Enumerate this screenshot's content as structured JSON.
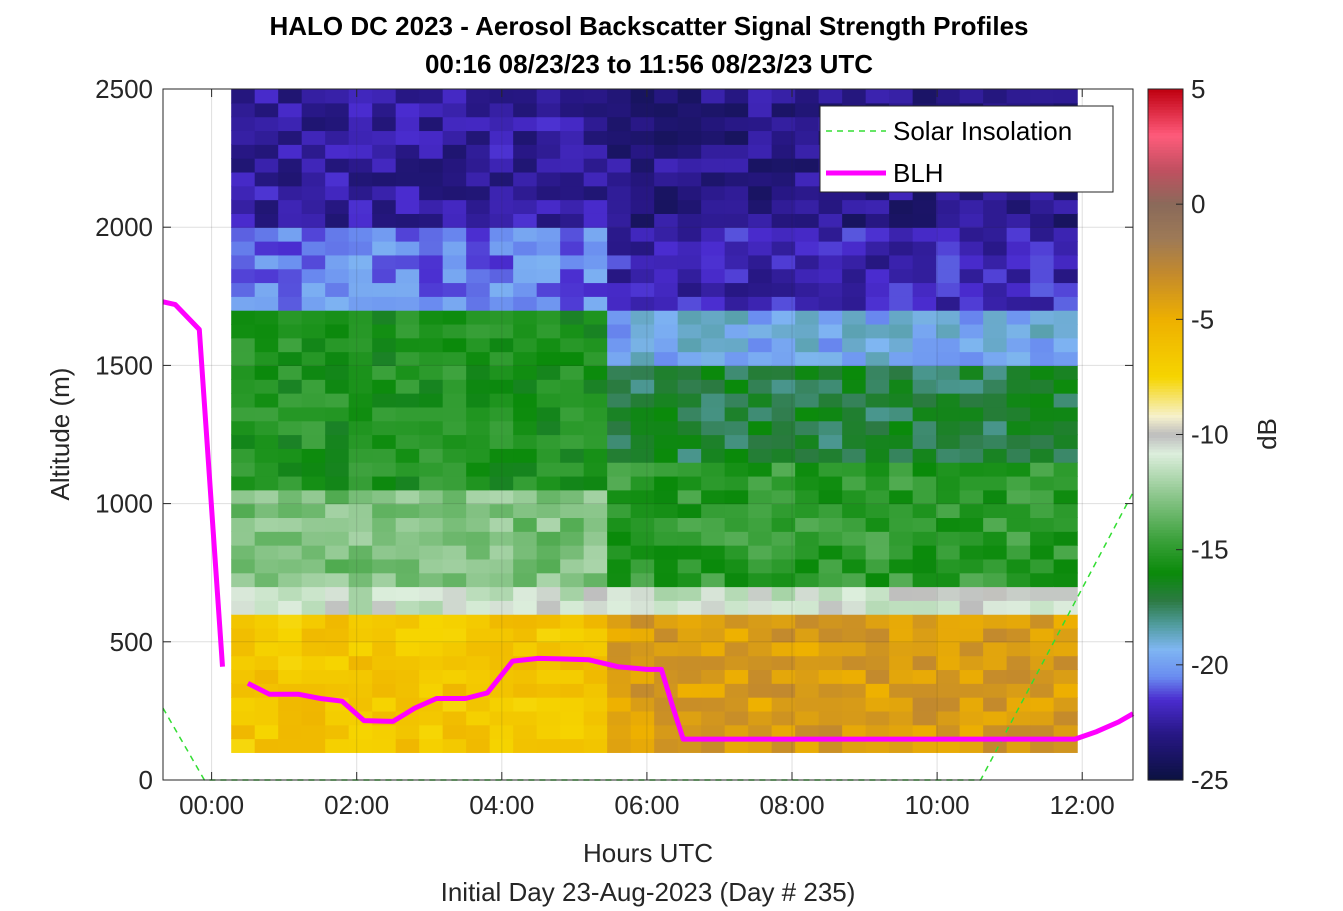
{
  "chart_data": {
    "type": "heatmap",
    "title": "HALO DC 2023 - Aerosol Backscatter Signal Strength Profiles",
    "subtitle": "00:16 08/23/23 to 11:56 08/23/23  UTC",
    "xlabel": "Hours UTC",
    "xlabel2": "Initial Day 23-Aug-2023 (Day # 235)",
    "ylabel": "Altitude (m)",
    "colorbar_label": "dB",
    "xlim": [
      -0.67,
      12.7
    ],
    "ylim": [
      0,
      2500
    ],
    "clim": [
      -25,
      5
    ],
    "x_tick_values": [
      0,
      2,
      4,
      6,
      8,
      10,
      12
    ],
    "x_tick_labels": [
      "00:00",
      "02:00",
      "04:00",
      "06:00",
      "08:00",
      "10:00",
      "12:00"
    ],
    "y_tick_values": [
      0,
      500,
      1000,
      1500,
      2000,
      2500
    ],
    "y_tick_labels": [
      "0",
      "500",
      "1000",
      "1500",
      "2000",
      "2500"
    ],
    "colorbar_ticks": [
      5,
      0,
      -5,
      -10,
      -15,
      -20,
      -25
    ],
    "colorbar_tick_labels": [
      "5",
      "0",
      "-5",
      "-10",
      "-15",
      "-20",
      "-25"
    ],
    "grid": true,
    "legend_position": "top-right",
    "legend": [
      {
        "name": "Solar Insolation",
        "color": "#33dd33",
        "style": "dashed"
      },
      {
        "name": "BLH",
        "color": "#ff00ff",
        "style": "solid"
      }
    ],
    "heatmap_time_range": [
      0.27,
      11.93
    ],
    "heatmap_alt_range": [
      100,
      2500
    ],
    "profile_regimes": [
      {
        "x_from": 0.27,
        "x_to": 5.6,
        "layers": [
          {
            "top": 100,
            "dB": -5
          },
          {
            "top": 580,
            "dB": -6.5
          },
          {
            "top": 680,
            "dB": -11
          },
          {
            "top": 1050,
            "dB": -13
          },
          {
            "top": 1700,
            "dB": -15.5
          },
          {
            "top": 2000,
            "dB": -20.5
          },
          {
            "top": 2500,
            "dB": -22.5
          }
        ]
      },
      {
        "x_from": 5.6,
        "x_to": 11.93,
        "layers": [
          {
            "top": 100,
            "dB": -3
          },
          {
            "top": 600,
            "dB": -4
          },
          {
            "top": 700,
            "dB": -11
          },
          {
            "top": 1150,
            "dB": -15
          },
          {
            "top": 1500,
            "dB": -17
          },
          {
            "top": 1700,
            "dB": -19.5
          },
          {
            "top": 2000,
            "dB": -22
          },
          {
            "top": 2500,
            "dB": -23
          }
        ]
      }
    ],
    "series": [
      {
        "name": "Solar Insolation",
        "x": [
          -0.67,
          -0.1,
          10.6,
          12.7
        ],
        "y": [
          260,
          0,
          0,
          1040
        ]
      },
      {
        "name": "BLH",
        "segments": [
          {
            "x": [
              -0.67,
              -0.5,
              -0.17,
              0.15
            ],
            "y": [
              1730,
              1720,
              1630,
              410
            ]
          },
          {
            "x": [
              0.5,
              0.8,
              1.2,
              1.5,
              1.8,
              2.1,
              2.5,
              2.8,
              3.1,
              3.5,
              3.8,
              4.15,
              4.5,
              4.8,
              5.2,
              5.6,
              6.0,
              6.2,
              6.35,
              6.5,
              6.8,
              7.5,
              8.5,
              9.5,
              10.5,
              11.5,
              11.9,
              12.2,
              12.5,
              12.7
            ],
            "y": [
              350,
              310,
              310,
              295,
              285,
              215,
              212,
              260,
              295,
              295,
              315,
              430,
              440,
              438,
              435,
              410,
              400,
              400,
              270,
              148,
              148,
              148,
              148,
              148,
              148,
              148,
              148,
              175,
              210,
              240
            ]
          }
        ]
      }
    ]
  },
  "colors": {
    "colormap": [
      {
        "dB": -25,
        "color": "#0b1140"
      },
      {
        "dB": -23,
        "color": "#271784"
      },
      {
        "dB": -21.5,
        "color": "#4a2ccf"
      },
      {
        "dB": -20.5,
        "color": "#6a8cf0"
      },
      {
        "dB": -19.3,
        "color": "#7fb6f2"
      },
      {
        "dB": -18.2,
        "color": "#4f9b9b"
      },
      {
        "dB": -17.2,
        "color": "#2c7a43"
      },
      {
        "dB": -16,
        "color": "#0a8a0a"
      },
      {
        "dB": -14.5,
        "color": "#3da23d"
      },
      {
        "dB": -12.5,
        "color": "#92c992"
      },
      {
        "dB": -10.8,
        "color": "#ddeedd"
      },
      {
        "dB": -10,
        "color": "#bdbdbd"
      },
      {
        "dB": -9.2,
        "color": "#f6f1cc"
      },
      {
        "dB": -7.5,
        "color": "#f6d500"
      },
      {
        "dB": -5,
        "color": "#eeb000"
      },
      {
        "dB": -3,
        "color": "#c48a2c"
      },
      {
        "dB": -1.5,
        "color": "#9e7a56"
      },
      {
        "dB": 0,
        "color": "#8a6a5a"
      },
      {
        "dB": 1.5,
        "color": "#c05060"
      },
      {
        "dB": 3,
        "color": "#ff5b7b"
      },
      {
        "dB": 5,
        "color": "#bf0010"
      }
    ]
  }
}
